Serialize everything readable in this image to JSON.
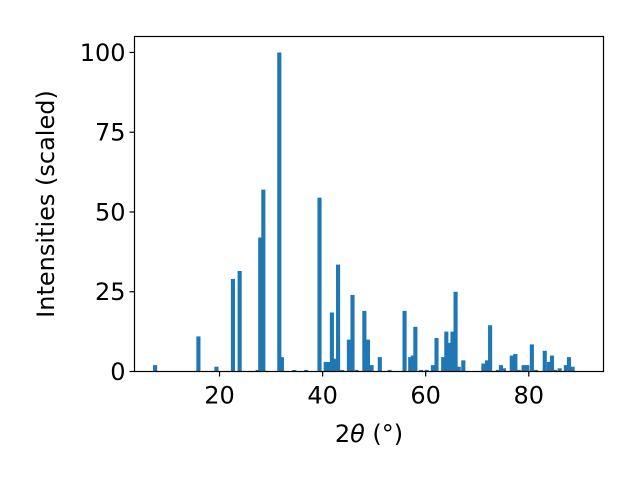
{
  "chart_data": {
    "type": "bar",
    "title": "",
    "xlabel_prefix": "2",
    "xlabel_theta": "θ",
    "xlabel_suffix": " (°)",
    "ylabel": "Intensities (scaled)",
    "xlim": [
      3.5,
      94.5
    ],
    "ylim": [
      0,
      105
    ],
    "xticks": [
      20,
      40,
      60,
      80
    ],
    "yticks": [
      0,
      25,
      50,
      75,
      100
    ],
    "grid": false,
    "bar_color": "#1f77b4",
    "bar_width": 0.8,
    "x": [
      7.5,
      15.9,
      19.4,
      22.6,
      23.9,
      27.4,
      27.9,
      28.5,
      31.6,
      32.1,
      34.5,
      36.8,
      39.4,
      40.6,
      41.2,
      41.8,
      42.4,
      43.0,
      43.8,
      45.1,
      45.8,
      46.6,
      48.1,
      48.8,
      49.5,
      51.1,
      53.0,
      55.9,
      57.0,
      57.5,
      58.0,
      59.1,
      60.2,
      61.4,
      62.1,
      63.4,
      64.0,
      64.6,
      65.2,
      65.8,
      66.4,
      67.3,
      71.2,
      71.9,
      72.5,
      74.0,
      74.6,
      75.2,
      76.7,
      77.4,
      78.1,
      79.0,
      79.7,
      80.6,
      81.4,
      83.1,
      83.9,
      84.5,
      85.1,
      86.0,
      87.2,
      87.8,
      88.5
    ]
  }
}
